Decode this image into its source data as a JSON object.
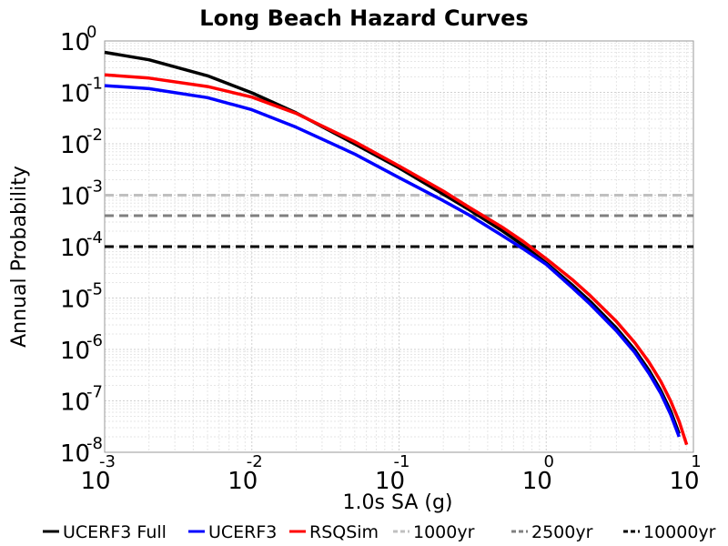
{
  "chart_data": {
    "type": "line",
    "title": "Long Beach Hazard Curves",
    "xlabel": "1.0s SA (g)",
    "ylabel": "Annual Probability",
    "x_scale": "log",
    "y_scale": "log",
    "xlim": [
      0.001,
      10
    ],
    "ylim": [
      1e-08,
      1
    ],
    "grid": true,
    "legend_position": "bottom",
    "x_tick_labels": [
      {
        "base": "10",
        "exp": "-3"
      },
      {
        "base": "10",
        "exp": "-2"
      },
      {
        "base": "10",
        "exp": "-1"
      },
      {
        "base": "10",
        "exp": "0"
      },
      {
        "base": "10",
        "exp": "1"
      }
    ],
    "y_tick_labels": [
      {
        "base": "10",
        "exp": "0"
      },
      {
        "base": "10",
        "exp": "-1"
      },
      {
        "base": "10",
        "exp": "-2"
      },
      {
        "base": "10",
        "exp": "-3"
      },
      {
        "base": "10",
        "exp": "-4"
      },
      {
        "base": "10",
        "exp": "-5"
      },
      {
        "base": "10",
        "exp": "-6"
      },
      {
        "base": "10",
        "exp": "-7"
      },
      {
        "base": "10",
        "exp": "-8"
      }
    ],
    "series": [
      {
        "name": "UCERF3 Full",
        "color": "#000000",
        "style": "solid",
        "x": [
          0.001,
          0.002,
          0.005,
          0.01,
          0.02,
          0.05,
          0.1,
          0.2,
          0.3,
          0.5,
          0.7,
          1.0,
          1.5,
          2.0,
          3.0,
          4.0,
          5.0,
          6.0,
          7.0,
          8.0
        ],
        "y": [
          0.6,
          0.43,
          0.21,
          0.098,
          0.04,
          0.0099,
          0.0034,
          0.00104,
          0.00052,
          0.000205,
          0.000105,
          4.8e-05,
          1.8e-05,
          8.5e-06,
          2.6e-06,
          9.8e-07,
          3.9e-07,
          1.6e-07,
          6.4e-08,
          2.3e-08
        ]
      },
      {
        "name": "UCERF3",
        "color": "#0000ff",
        "style": "solid",
        "x": [
          0.001,
          0.002,
          0.005,
          0.01,
          0.02,
          0.05,
          0.1,
          0.2,
          0.3,
          0.5,
          0.7,
          1.0,
          1.5,
          2.0,
          3.0,
          4.0,
          5.0,
          6.0,
          7.0,
          8.0
        ],
        "y": [
          0.135,
          0.118,
          0.079,
          0.046,
          0.021,
          0.0063,
          0.0022,
          0.00078,
          0.00041,
          0.000165,
          9e-05,
          4.5e-05,
          1.6e-05,
          7.5e-06,
          2.3e-06,
          8.7e-07,
          3.4e-07,
          1.4e-07,
          5.5e-08,
          2e-08
        ]
      },
      {
        "name": "RSQSim",
        "color": "#ff0000",
        "style": "solid",
        "x": [
          0.001,
          0.002,
          0.005,
          0.01,
          0.02,
          0.05,
          0.1,
          0.2,
          0.3,
          0.5,
          0.7,
          1.0,
          1.5,
          2.0,
          3.0,
          4.0,
          5.0,
          6.0,
          7.0,
          8.0,
          9.0
        ],
        "y": [
          0.22,
          0.19,
          0.13,
          0.081,
          0.039,
          0.011,
          0.0037,
          0.0012,
          0.00058,
          0.00024,
          0.000125,
          5.8e-05,
          2.3e-05,
          1.1e-05,
          3.5e-06,
          1.35e-06,
          5.6e-07,
          2.4e-07,
          1e-07,
          4e-08,
          1.4e-08
        ]
      },
      {
        "name": "1000yr",
        "color": "#c0c0c0",
        "style": "dashed",
        "x": [
          0.001,
          10
        ],
        "y": [
          0.001,
          0.001
        ]
      },
      {
        "name": "2500yr",
        "color": "#808080",
        "style": "dashed",
        "x": [
          0.001,
          10
        ],
        "y": [
          0.0004,
          0.0004
        ]
      },
      {
        "name": "10000yr",
        "color": "#000000",
        "style": "dashed",
        "x": [
          0.001,
          10
        ],
        "y": [
          0.0001,
          0.0001
        ]
      }
    ]
  }
}
